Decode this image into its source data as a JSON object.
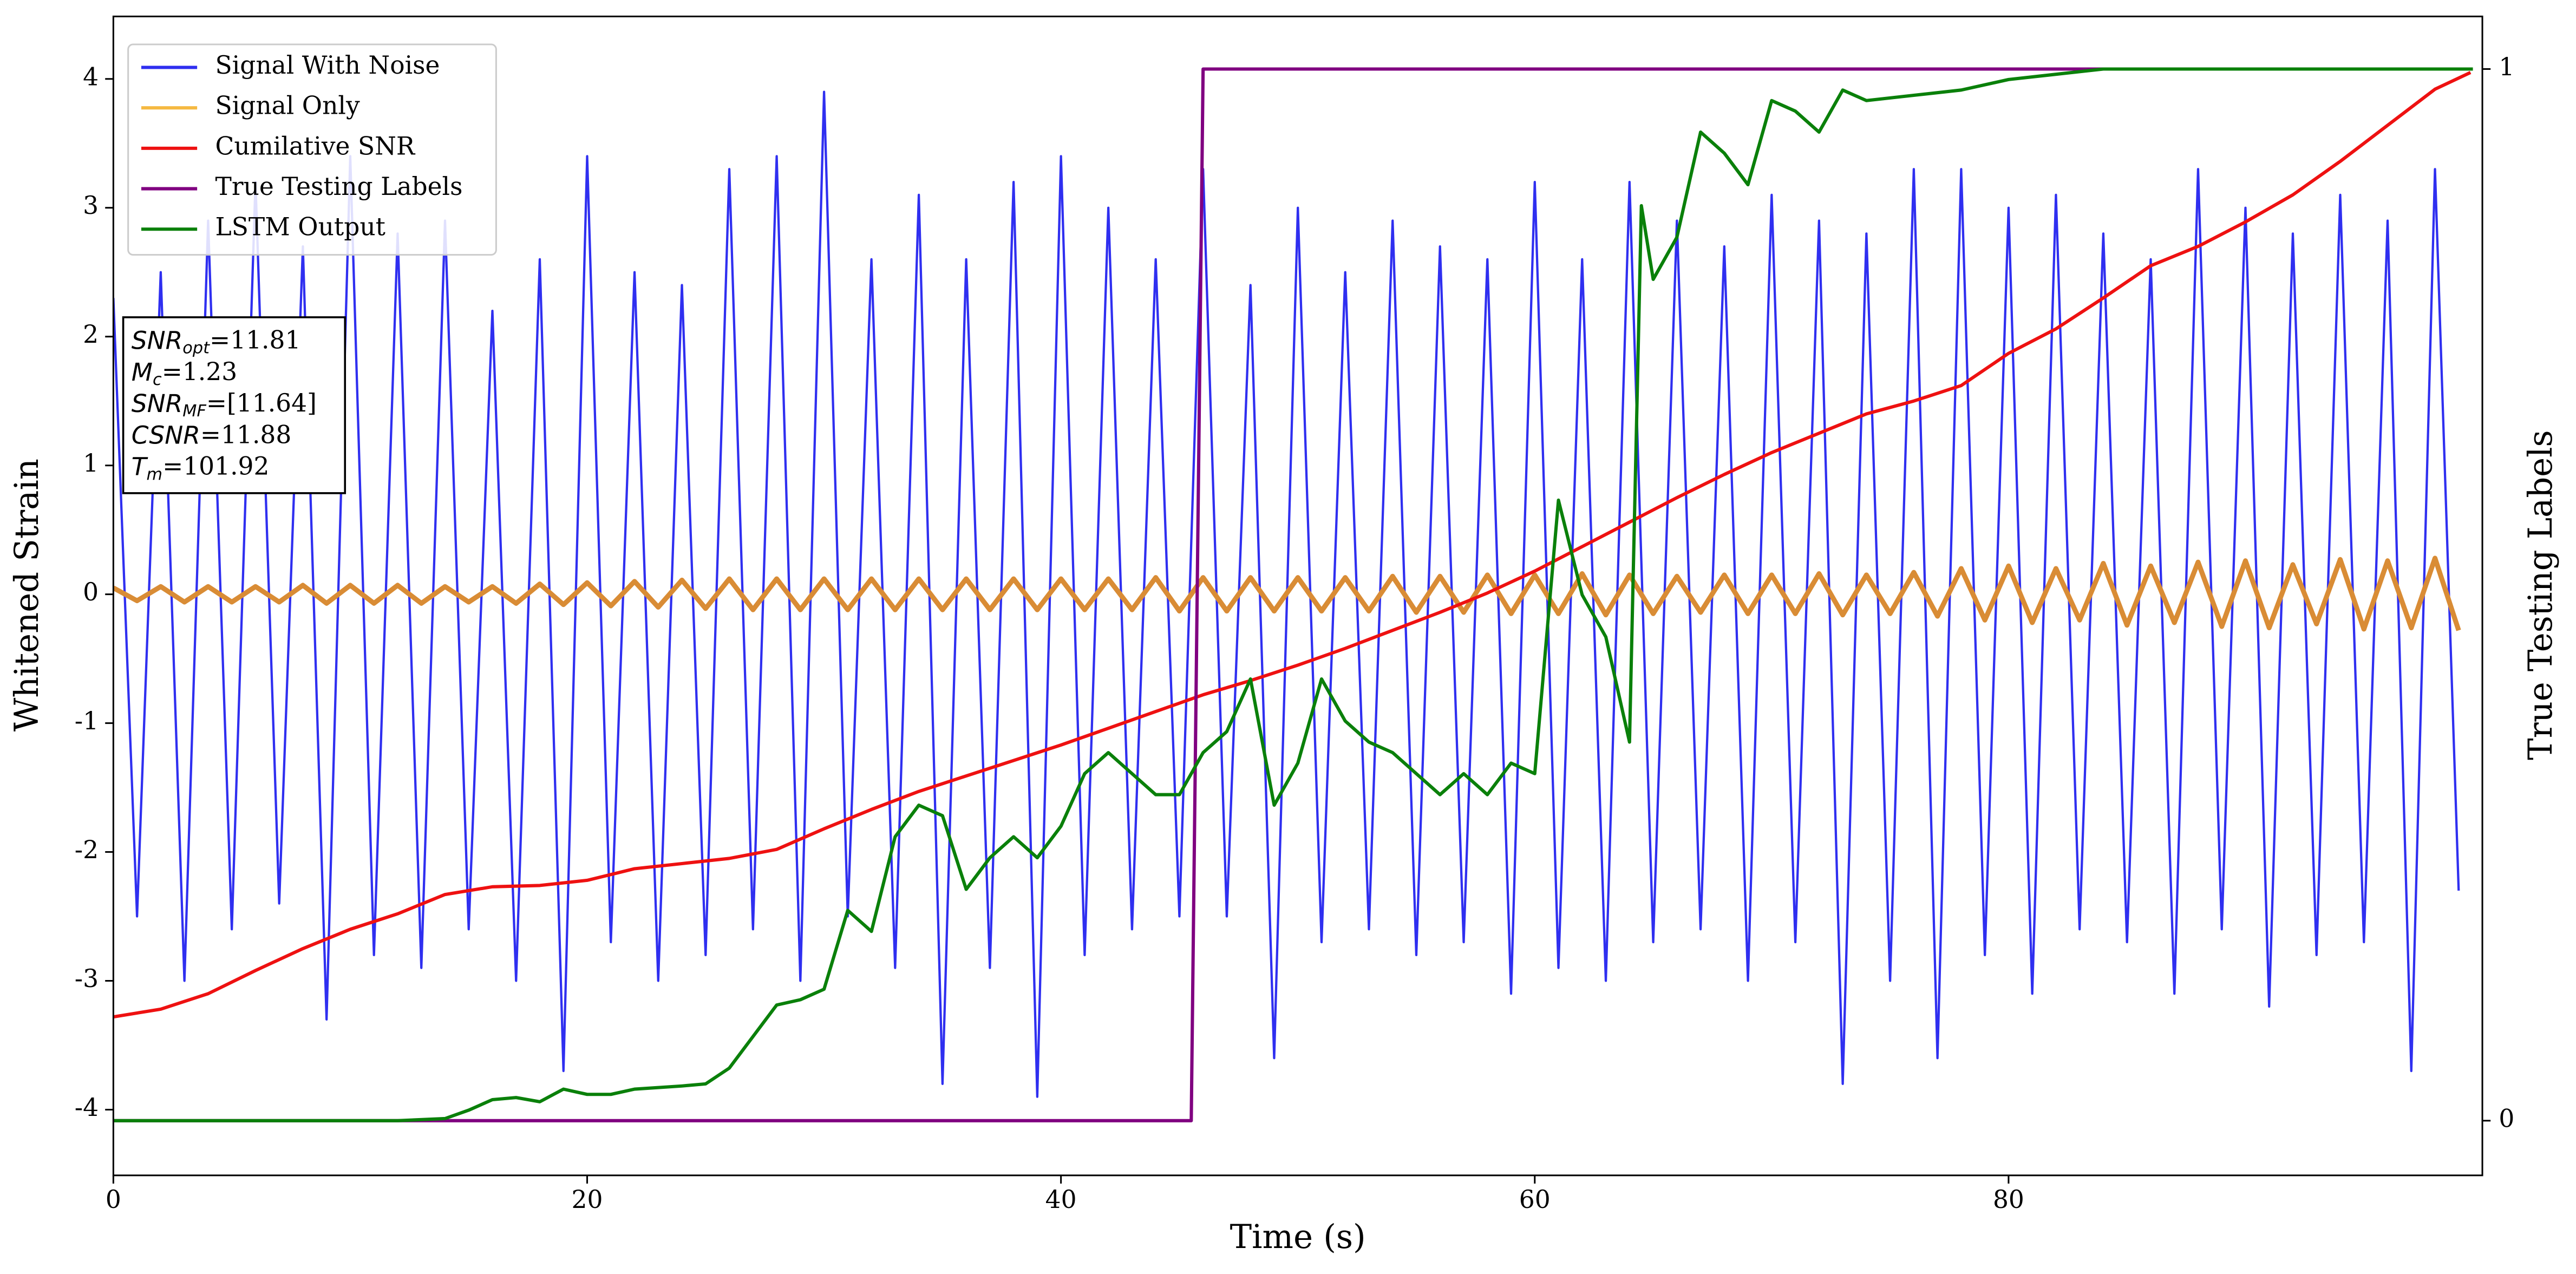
{
  "chart_data": {
    "type": "line",
    "xlabel": "Time (s)",
    "ylabel": "Whitened Strain",
    "y2label": "True Testing Labels",
    "xlim": [
      0,
      100
    ],
    "ylim": [
      -4.51,
      4.485
    ],
    "y2lim": [
      -0.052,
      1.05
    ],
    "xticks": [
      0,
      20,
      40,
      60,
      80
    ],
    "yticks": [
      -4,
      -3,
      -2,
      -1,
      0,
      1,
      2,
      3,
      4
    ],
    "y2ticks": [
      0,
      1
    ],
    "legend": "upper left",
    "annotation": [
      {
        "main": "SNR",
        "sub": "opt",
        "rest": "=11.81"
      },
      {
        "main": "M",
        "sub": "c",
        "rest": "=1.23"
      },
      {
        "main": "SNR",
        "sub": "MF",
        "rest": "=[11.64]"
      },
      {
        "main": "CSNR",
        "rest": "=11.88"
      },
      {
        "main": "T",
        "sub": "m",
        "rest": "=101.92"
      }
    ],
    "series": [
      {
        "name": "Signal With Noise",
        "color": "#2f2ff0",
        "width": 1.4,
        "x": [
          0,
          1,
          2,
          3,
          4,
          5,
          6,
          7,
          8,
          9,
          10,
          11,
          12,
          13,
          14,
          15,
          16,
          17,
          18,
          19,
          20,
          21,
          22,
          23,
          24,
          25,
          26,
          27,
          28,
          29,
          30,
          31,
          32,
          33,
          34,
          35,
          36,
          37,
          38,
          39,
          40,
          41,
          42,
          43,
          44,
          45,
          46,
          47,
          48,
          49,
          50,
          51,
          52,
          53,
          54,
          55,
          56,
          57,
          58,
          59,
          60,
          61,
          62,
          63,
          64,
          65,
          66,
          67,
          68,
          69,
          70,
          71,
          72,
          73,
          74,
          75,
          76,
          77,
          78,
          79,
          80,
          81,
          82,
          83,
          84,
          85,
          86,
          87,
          88,
          89,
          90,
          91,
          92,
          93,
          94,
          95,
          96,
          97,
          98,
          99
        ],
        "values": [
          2.3,
          -2.5,
          2.5,
          -3.0,
          2.9,
          -2.6,
          3.2,
          -2.4,
          2.7,
          -3.3,
          3.4,
          -2.8,
          2.8,
          -2.9,
          2.9,
          -2.6,
          2.2,
          -3.0,
          2.6,
          -3.7,
          3.4,
          -2.7,
          2.5,
          -3.0,
          2.4,
          -2.8,
          3.3,
          -2.6,
          3.4,
          -3.0,
          3.9,
          -2.5,
          2.6,
          -2.9,
          3.1,
          -3.8,
          2.6,
          -2.9,
          3.2,
          -3.9,
          3.4,
          -2.8,
          3.0,
          -2.6,
          2.6,
          -2.5,
          3.3,
          -2.5,
          2.4,
          -3.6,
          3.0,
          -2.7,
          2.5,
          -2.6,
          2.9,
          -2.8,
          2.7,
          -2.7,
          2.6,
          -3.1,
          3.2,
          -2.9,
          2.6,
          -3.0,
          3.2,
          -2.7,
          2.9,
          -2.6,
          2.7,
          -3.0,
          3.1,
          -2.7,
          2.9,
          -3.8,
          2.8,
          -3.0,
          3.3,
          -3.6,
          3.3,
          -2.8,
          3.0,
          -3.1,
          3.1,
          -2.6,
          2.8,
          -2.7,
          2.6,
          -3.1,
          3.3,
          -2.6,
          3.0,
          -3.2,
          2.8,
          -2.8,
          3.1,
          -2.7,
          2.9,
          -3.7,
          3.3,
          -2.3
        ]
      },
      {
        "name": "Signal Only",
        "color": "#f5b942",
        "drawcolor": "#d98c35",
        "width": 3,
        "x": [
          0,
          1,
          2,
          3,
          4,
          5,
          6,
          7,
          8,
          9,
          10,
          11,
          12,
          13,
          14,
          15,
          16,
          17,
          18,
          19,
          20,
          21,
          22,
          23,
          24,
          25,
          26,
          27,
          28,
          29,
          30,
          31,
          32,
          33,
          34,
          35,
          36,
          37,
          38,
          39,
          40,
          41,
          42,
          43,
          44,
          45,
          46,
          47,
          48,
          49,
          50,
          51,
          52,
          53,
          54,
          55,
          56,
          57,
          58,
          59,
          60,
          61,
          62,
          63,
          64,
          65,
          66,
          67,
          68,
          69,
          70,
          71,
          72,
          73,
          74,
          75,
          76,
          77,
          78,
          79,
          80,
          81,
          82,
          83,
          84,
          85,
          86,
          87,
          88,
          89,
          90,
          91,
          92,
          93,
          94,
          95,
          96,
          97,
          98,
          99
        ],
        "values": [
          0.05,
          -0.05,
          0.06,
          -0.06,
          0.06,
          -0.06,
          0.06,
          -0.06,
          0.07,
          -0.07,
          0.07,
          -0.07,
          0.07,
          -0.07,
          0.06,
          -0.06,
          0.06,
          -0.07,
          0.08,
          -0.08,
          0.09,
          -0.09,
          0.1,
          -0.1,
          0.11,
          -0.11,
          0.12,
          -0.12,
          0.12,
          -0.12,
          0.12,
          -0.12,
          0.12,
          -0.12,
          0.12,
          -0.12,
          0.12,
          -0.12,
          0.12,
          -0.12,
          0.12,
          -0.12,
          0.12,
          -0.12,
          0.13,
          -0.13,
          0.13,
          -0.13,
          0.13,
          -0.13,
          0.13,
          -0.13,
          0.13,
          -0.13,
          0.14,
          -0.14,
          0.14,
          -0.14,
          0.15,
          -0.15,
          0.15,
          -0.15,
          0.16,
          -0.16,
          0.15,
          -0.15,
          0.14,
          -0.14,
          0.15,
          -0.15,
          0.15,
          -0.15,
          0.16,
          -0.16,
          0.15,
          -0.15,
          0.17,
          -0.17,
          0.2,
          -0.2,
          0.22,
          -0.22,
          0.2,
          -0.2,
          0.24,
          -0.24,
          0.22,
          -0.22,
          0.25,
          -0.25,
          0.26,
          -0.26,
          0.23,
          -0.23,
          0.27,
          -0.27,
          0.26,
          -0.26,
          0.28,
          -0.28
        ]
      },
      {
        "name": "Cumilative SNR",
        "color": "#ee1111",
        "width": 2,
        "x": [
          0,
          2,
          4,
          6,
          8,
          10,
          12,
          14,
          16,
          18,
          20,
          22,
          24,
          26,
          28,
          30,
          32,
          34,
          36,
          38,
          40,
          42,
          44,
          46,
          48,
          50,
          52,
          54,
          56,
          58,
          60,
          62,
          64,
          66,
          68,
          70,
          72,
          74,
          76,
          78,
          80,
          82,
          84,
          86,
          88,
          90,
          92,
          94,
          96,
          98,
          99.5
        ],
        "values": [
          -3.28,
          -3.22,
          -3.1,
          -2.92,
          -2.75,
          -2.6,
          -2.48,
          -2.33,
          -2.27,
          -2.26,
          -2.22,
          -2.13,
          -2.09,
          -2.05,
          -1.98,
          -1.82,
          -1.67,
          -1.53,
          -1.41,
          -1.29,
          -1.17,
          -1.04,
          -0.91,
          -0.78,
          -0.67,
          -0.55,
          -0.42,
          -0.28,
          -0.14,
          0.01,
          0.18,
          0.37,
          0.56,
          0.75,
          0.93,
          1.1,
          1.25,
          1.4,
          1.5,
          1.62,
          1.87,
          2.06,
          2.3,
          2.55,
          2.7,
          2.89,
          3.1,
          3.36,
          3.64,
          3.92,
          4.05
        ]
      },
      {
        "name": "True Testing Labels",
        "color": "#800080",
        "width": 2,
        "axis": "y2",
        "x": [
          0,
          45.5,
          46,
          99.6
        ],
        "values": [
          0,
          0,
          1,
          1
        ]
      },
      {
        "name": "LSTM Output",
        "color": "#0a800a",
        "width": 2,
        "axis": "y2",
        "x": [
          0,
          12,
          14,
          15,
          16,
          17,
          18,
          19,
          20,
          21,
          22,
          24,
          25,
          26,
          27,
          28,
          29,
          30,
          31,
          32,
          33,
          34,
          35,
          36,
          37,
          38,
          39,
          40,
          41,
          42,
          43,
          44,
          45,
          46,
          47,
          48,
          49,
          50,
          51,
          52,
          53,
          54,
          55,
          56,
          57,
          58,
          59,
          60,
          61,
          62,
          63,
          64,
          64.5,
          65,
          66,
          67,
          68,
          69,
          70,
          71,
          72,
          73,
          74,
          76,
          78,
          80,
          82,
          84,
          99.6
        ],
        "values": [
          0,
          0,
          0.002,
          0.01,
          0.02,
          0.022,
          0.018,
          0.03,
          0.025,
          0.025,
          0.03,
          0.033,
          0.035,
          0.05,
          0.08,
          0.11,
          0.115,
          0.125,
          0.2,
          0.18,
          0.27,
          0.3,
          0.29,
          0.22,
          0.25,
          0.27,
          0.25,
          0.28,
          0.33,
          0.35,
          0.33,
          0.31,
          0.31,
          0.35,
          0.37,
          0.42,
          0.3,
          0.34,
          0.42,
          0.38,
          0.36,
          0.35,
          0.33,
          0.31,
          0.33,
          0.31,
          0.34,
          0.33,
          0.59,
          0.5,
          0.46,
          0.36,
          0.87,
          0.8,
          0.84,
          0.94,
          0.92,
          0.89,
          0.97,
          0.96,
          0.94,
          0.98,
          0.97,
          0.975,
          0.98,
          0.99,
          0.995,
          1,
          1
        ]
      }
    ]
  }
}
